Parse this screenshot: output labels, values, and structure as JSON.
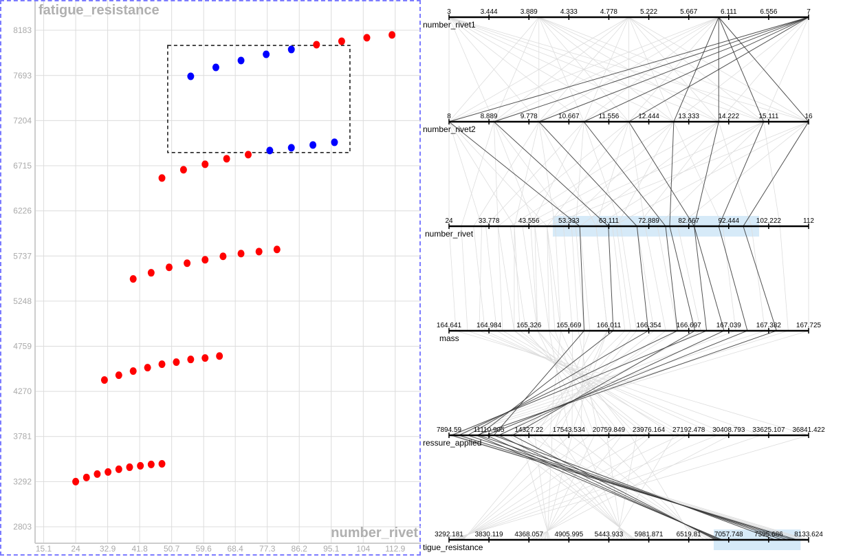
{
  "chart_data": [
    {
      "type": "scatter",
      "title": "fatigue_resistance",
      "xlabel": "number_rivet",
      "ylabel": "fatigue_resistance",
      "xlim": [
        12.7,
        120.4
      ],
      "ylim": [
        2624,
        8511
      ],
      "x_ticks": [
        "15.1",
        "24",
        "32.9",
        "41.8",
        "50.7",
        "59.6",
        "68.4",
        "77.3",
        "86.2",
        "95.1",
        "104",
        "112.9"
      ],
      "y_ticks": [
        "8183",
        "7693",
        "7204",
        "6715",
        "6226",
        "5737",
        "5248",
        "4759",
        "4270",
        "3781",
        "3292",
        "2803"
      ],
      "grid": true,
      "colors": {
        "selected": "#0000ff",
        "unselected": "#ff0000"
      },
      "selection_box": {
        "x": [
          49.6,
          100.3
        ],
        "y": [
          6858,
          8019
        ]
      },
      "points": [
        {
          "x": 24,
          "y": 3292,
          "selected": false
        },
        {
          "x": 27,
          "y": 3337,
          "selected": false
        },
        {
          "x": 30,
          "y": 3374,
          "selected": false
        },
        {
          "x": 33,
          "y": 3396,
          "selected": false
        },
        {
          "x": 36,
          "y": 3426,
          "selected": false
        },
        {
          "x": 39,
          "y": 3448,
          "selected": false
        },
        {
          "x": 42,
          "y": 3463,
          "selected": false
        },
        {
          "x": 45,
          "y": 3478,
          "selected": false
        },
        {
          "x": 48,
          "y": 3485,
          "selected": false
        },
        {
          "x": 32,
          "y": 4393,
          "selected": false
        },
        {
          "x": 36,
          "y": 4445,
          "selected": false
        },
        {
          "x": 40,
          "y": 4490,
          "selected": false
        },
        {
          "x": 44,
          "y": 4527,
          "selected": false
        },
        {
          "x": 48,
          "y": 4564,
          "selected": false
        },
        {
          "x": 52,
          "y": 4587,
          "selected": false
        },
        {
          "x": 56,
          "y": 4616,
          "selected": false
        },
        {
          "x": 60,
          "y": 4631,
          "selected": false
        },
        {
          "x": 64,
          "y": 4653,
          "selected": false
        },
        {
          "x": 40,
          "y": 5488,
          "selected": false
        },
        {
          "x": 45,
          "y": 5555,
          "selected": false
        },
        {
          "x": 50,
          "y": 5614,
          "selected": false
        },
        {
          "x": 55,
          "y": 5659,
          "selected": false
        },
        {
          "x": 60,
          "y": 5696,
          "selected": false
        },
        {
          "x": 65,
          "y": 5733,
          "selected": false
        },
        {
          "x": 70,
          "y": 5763,
          "selected": false
        },
        {
          "x": 75,
          "y": 5785,
          "selected": false
        },
        {
          "x": 80,
          "y": 5808,
          "selected": false
        },
        {
          "x": 48,
          "y": 6582,
          "selected": false
        },
        {
          "x": 54,
          "y": 6671,
          "selected": false
        },
        {
          "x": 60,
          "y": 6731,
          "selected": false
        },
        {
          "x": 66,
          "y": 6791,
          "selected": false
        },
        {
          "x": 72,
          "y": 6835,
          "selected": false
        },
        {
          "x": 78,
          "y": 6880,
          "selected": true
        },
        {
          "x": 84,
          "y": 6910,
          "selected": true
        },
        {
          "x": 90,
          "y": 6940,
          "selected": true
        },
        {
          "x": 96,
          "y": 6969,
          "selected": true
        },
        {
          "x": 56,
          "y": 7684,
          "selected": true
        },
        {
          "x": 63,
          "y": 7781,
          "selected": true
        },
        {
          "x": 70,
          "y": 7855,
          "selected": true
        },
        {
          "x": 77,
          "y": 7922,
          "selected": true
        },
        {
          "x": 84,
          "y": 7975,
          "selected": true
        },
        {
          "x": 91,
          "y": 8027,
          "selected": false
        },
        {
          "x": 98,
          "y": 8064,
          "selected": false
        },
        {
          "x": 105,
          "y": 8102,
          "selected": false
        },
        {
          "x": 112,
          "y": 8133,
          "selected": false
        }
      ]
    },
    {
      "type": "parallel_coordinates",
      "axes": [
        {
          "label": "number_rivet1",
          "range": [
            3,
            7
          ],
          "ticks": [
            "3",
            "3.444",
            "3.889",
            "4.333",
            "4.778",
            "5.222",
            "5.667",
            "6.111",
            "6.556",
            "7"
          ]
        },
        {
          "label": "number_rivet2",
          "range": [
            8,
            16
          ],
          "ticks": [
            "8",
            "8.889",
            "9.778",
            "10.667",
            "11.556",
            "12.444",
            "13.333",
            "14.222",
            "15.111",
            "16"
          ]
        },
        {
          "label": "number_rivet",
          "range": [
            24,
            112
          ],
          "ticks": [
            "24",
            "33.778",
            "43.556",
            "53.333",
            "63.111",
            "72.889",
            "82.667",
            "92.444",
            "102.222",
            "112"
          ],
          "brush": [
            49.4,
            99.9
          ]
        },
        {
          "label": "mass",
          "range": [
            164.641,
            167.725
          ],
          "ticks": [
            "164.641",
            "164.984",
            "165.326",
            "165.669",
            "166.011",
            "166.354",
            "166.697",
            "167.039",
            "167.382",
            "167.725"
          ]
        },
        {
          "label": "ressure_applied",
          "range": [
            7894.59,
            36841.422
          ],
          "ticks": [
            "7894.59",
            "11110.905",
            "14327.22",
            "17543.534",
            "20759.849",
            "23976.164",
            "27192.478",
            "30408.793",
            "33625.107",
            "36841.422"
          ]
        },
        {
          "label": "tigue_resistance",
          "range": [
            3292.181,
            8133.624
          ],
          "ticks": [
            "3292.181",
            "3830.119",
            "4368.057",
            "4905.995",
            "5443.933",
            "5981.871",
            "6519.81",
            "7057.748",
            "7595.686",
            "8133.624"
          ],
          "brush": [
            6856,
            8026
          ]
        }
      ],
      "colors": {
        "selected": "#333333",
        "unselected": "#dddddd",
        "brush": "#d6eaf8"
      },
      "records": [
        [
          3,
          8,
          24,
          164.7,
          36841,
          3292
        ],
        [
          3,
          9,
          27,
          164.8,
          33000,
          3337
        ],
        [
          3,
          10,
          30,
          164.95,
          29500,
          3374
        ],
        [
          3,
          11,
          33,
          165.05,
          26500,
          3396
        ],
        [
          3,
          12,
          36,
          165.2,
          23800,
          3426
        ],
        [
          3,
          13,
          39,
          165.3,
          21500,
          3448
        ],
        [
          3,
          14,
          42,
          165.4,
          19200,
          3463
        ],
        [
          3,
          15,
          45,
          165.5,
          17600,
          3478
        ],
        [
          3,
          16,
          48,
          165.6,
          16000,
          3485
        ],
        [
          4,
          8,
          32,
          164.9,
          30500,
          4393
        ],
        [
          4,
          9,
          36,
          165.1,
          27000,
          4445
        ],
        [
          4,
          10,
          40,
          165.25,
          24200,
          4490
        ],
        [
          4,
          11,
          44,
          165.4,
          21800,
          4527
        ],
        [
          4,
          12,
          48,
          165.55,
          19600,
          4564
        ],
        [
          4,
          13,
          52,
          165.7,
          17800,
          4587
        ],
        [
          4,
          14,
          56,
          165.85,
          16200,
          4616
        ],
        [
          4,
          15,
          60,
          166.0,
          14800,
          4631
        ],
        [
          4,
          16,
          64,
          166.15,
          13600,
          4653
        ],
        [
          5,
          8,
          40,
          165.2,
          26000,
          5488
        ],
        [
          5,
          9,
          45,
          165.4,
          23000,
          5555
        ],
        [
          5,
          10,
          50,
          165.6,
          20600,
          5614
        ],
        [
          5,
          11,
          55,
          165.8,
          18500,
          5659
        ],
        [
          5,
          12,
          60,
          166.0,
          16700,
          5696
        ],
        [
          5,
          13,
          65,
          166.2,
          15200,
          5733
        ],
        [
          5,
          14,
          70,
          166.4,
          13900,
          5763
        ],
        [
          5,
          15,
          75,
          166.6,
          12800,
          5785
        ],
        [
          5,
          16,
          80,
          166.8,
          11900,
          5808
        ],
        [
          6,
          8,
          48,
          165.5,
          22500,
          6582
        ],
        [
          6,
          9,
          54,
          165.75,
          19900,
          6671
        ],
        [
          6,
          10,
          60,
          166.0,
          17700,
          6731
        ],
        [
          6,
          11,
          66,
          166.25,
          15900,
          6791
        ],
        [
          6,
          12,
          72,
          166.5,
          14300,
          6835
        ],
        [
          6,
          13,
          78,
          166.75,
          13000,
          6880
        ],
        [
          6,
          14,
          84,
          167.0,
          11900,
          6910
        ],
        [
          6,
          15,
          90,
          167.2,
          10900,
          6940
        ],
        [
          6,
          16,
          96,
          167.45,
          10100,
          6969
        ],
        [
          7,
          8,
          56,
          165.8,
          11500,
          7684
        ],
        [
          7,
          9,
          63,
          166.05,
          10300,
          7781
        ],
        [
          7,
          10,
          70,
          166.35,
          9400,
          7855
        ],
        [
          7,
          11,
          77,
          166.6,
          8700,
          7922
        ],
        [
          7,
          12,
          84,
          166.85,
          8100,
          7975
        ],
        [
          7,
          13,
          91,
          167.1,
          7900,
          8027
        ],
        [
          7,
          14,
          98,
          167.35,
          7894.59,
          8064
        ],
        [
          7,
          15,
          105,
          167.55,
          8200,
          8102
        ],
        [
          7,
          16,
          112,
          167.725,
          8500,
          8133
        ]
      ]
    }
  ]
}
